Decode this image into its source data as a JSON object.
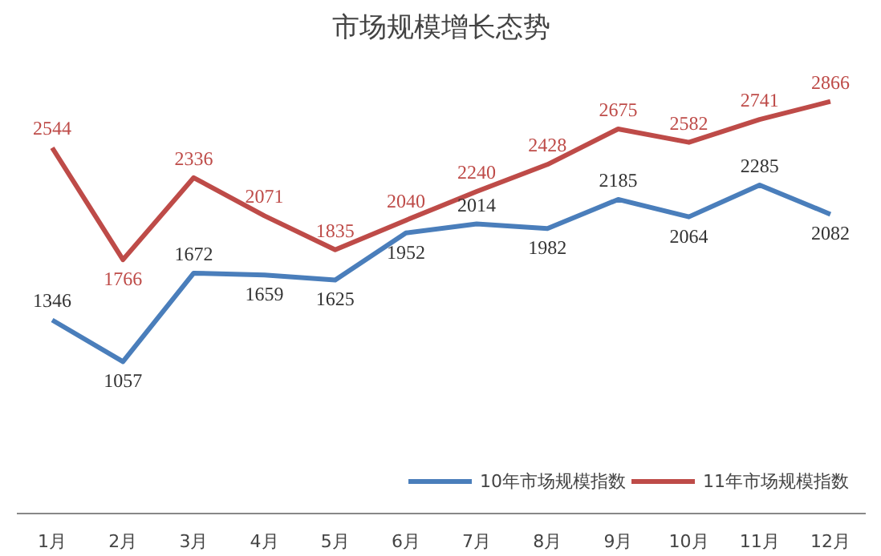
{
  "chart_data": {
    "type": "line",
    "title": "市场规模增长态势",
    "categories": [
      "1月",
      "2月",
      "3月",
      "4月",
      "5月",
      "6月",
      "7月",
      "8月",
      "9月",
      "10月",
      "11月",
      "12月"
    ],
    "series": [
      {
        "name": "10年市场规模指数",
        "color": "#4a7ebb",
        "values": [
          1346,
          1057,
          1672,
          1659,
          1625,
          1952,
          2014,
          1982,
          2185,
          2064,
          2285,
          2082
        ]
      },
      {
        "name": "11年市场规模指数",
        "color": "#be4b48",
        "values": [
          2544,
          1766,
          2336,
          2071,
          1835,
          2040,
          2240,
          2428,
          2675,
          2582,
          2741,
          2866
        ]
      }
    ],
    "data_labels": true,
    "legend": "bottom right",
    "grid": false,
    "marker": "none",
    "line_style": "solid",
    "tick_labels": "x"
  }
}
